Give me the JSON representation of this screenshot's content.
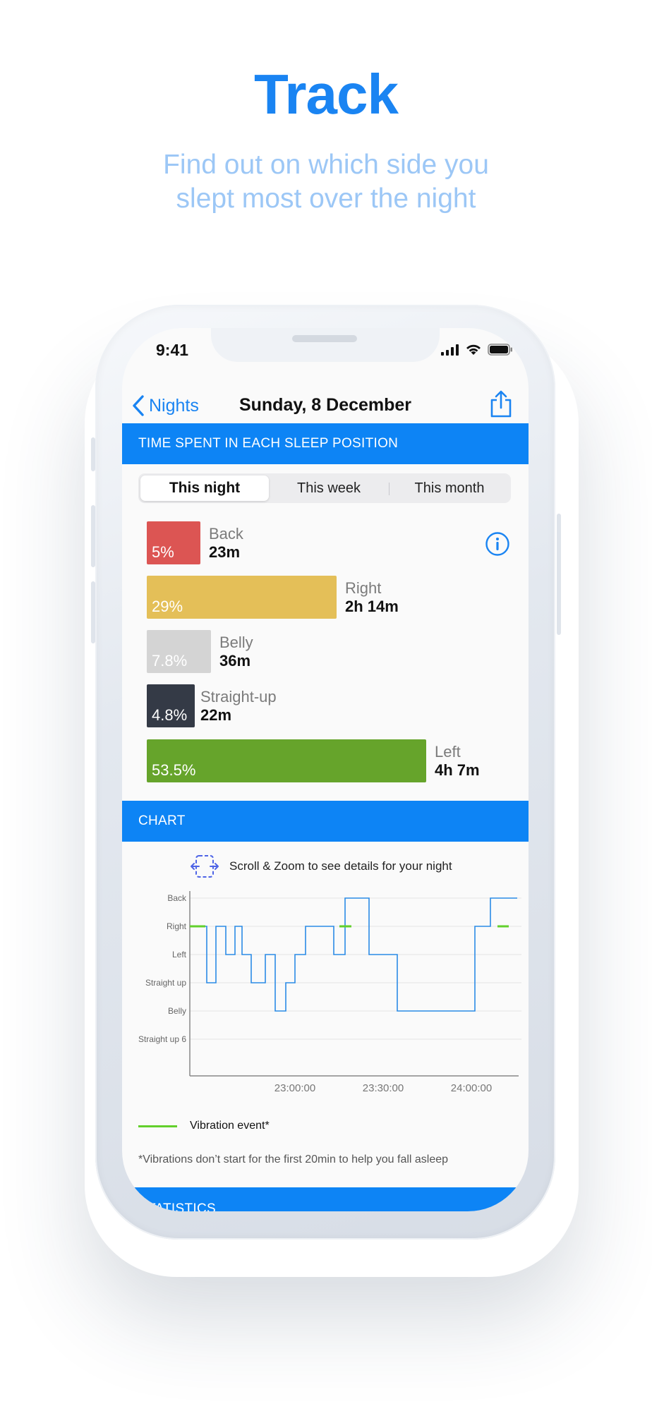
{
  "hero": {
    "title": "Track",
    "subtitle_line1": "Find out on which side you",
    "subtitle_line2": "slept most over the night"
  },
  "status_bar": {
    "time": "9:41",
    "icons": [
      "signal-icon",
      "wifi-icon",
      "battery-icon"
    ]
  },
  "nav": {
    "back_label": "Nights",
    "title": "Sunday, 8 December",
    "share_icon": "share-icon"
  },
  "positions_section": {
    "header": "TIME SPENT IN EACH SLEEP POSITION",
    "tabs": [
      {
        "label": "This night",
        "active": true
      },
      {
        "label": "This week",
        "active": false
      },
      {
        "label": "This month",
        "active": false
      }
    ],
    "items": [
      {
        "name": "Back",
        "percent_label": "5%",
        "percent": 5,
        "duration": "23m",
        "color": "#dc5553"
      },
      {
        "name": "Right",
        "percent_label": "29%",
        "percent": 29,
        "duration": "2h 14m",
        "color": "#e4bf58"
      },
      {
        "name": "Belly",
        "percent_label": "7.8%",
        "percent": 7.8,
        "duration": "36m",
        "color": "#d4d4d4"
      },
      {
        "name": "Straight-up",
        "percent_label": "4.8%",
        "percent": 4.8,
        "duration": "22m",
        "color": "#343a46"
      },
      {
        "name": "Left",
        "percent_label": "53.5%",
        "percent": 53.5,
        "duration": "4h 7m",
        "color": "#66a42b"
      }
    ]
  },
  "chart_section": {
    "header": "CHART",
    "hint": "Scroll & Zoom to see details for your night",
    "legend_label": "Vibration event*",
    "footnote": "*Vibrations don’t start for the first 20min to help you fall asleep"
  },
  "stats_section": {
    "header": "STATISTICS"
  },
  "chart_data": {
    "type": "line",
    "y_categories": [
      "Back",
      "Right",
      "Left",
      "Straight up",
      "Belly",
      "Straight up 6"
    ],
    "x_tick_labels": [
      "23:00:00",
      "23:30:00",
      "24:00:00"
    ],
    "series": [
      {
        "name": "",
        "color": "#2b8be6",
        "step_levels": [
          "Right",
          "Straight up",
          "Right",
          "Left",
          "Right",
          "Left",
          "Straight up",
          "Left",
          "Belly",
          "Straight up",
          "Left",
          "Right",
          "Left",
          "Back",
          "Left",
          "Belly",
          "Right",
          "Back"
        ]
      }
    ],
    "vibration_color": "#62d02c",
    "grid": true,
    "legend_position": "bottom-left"
  }
}
